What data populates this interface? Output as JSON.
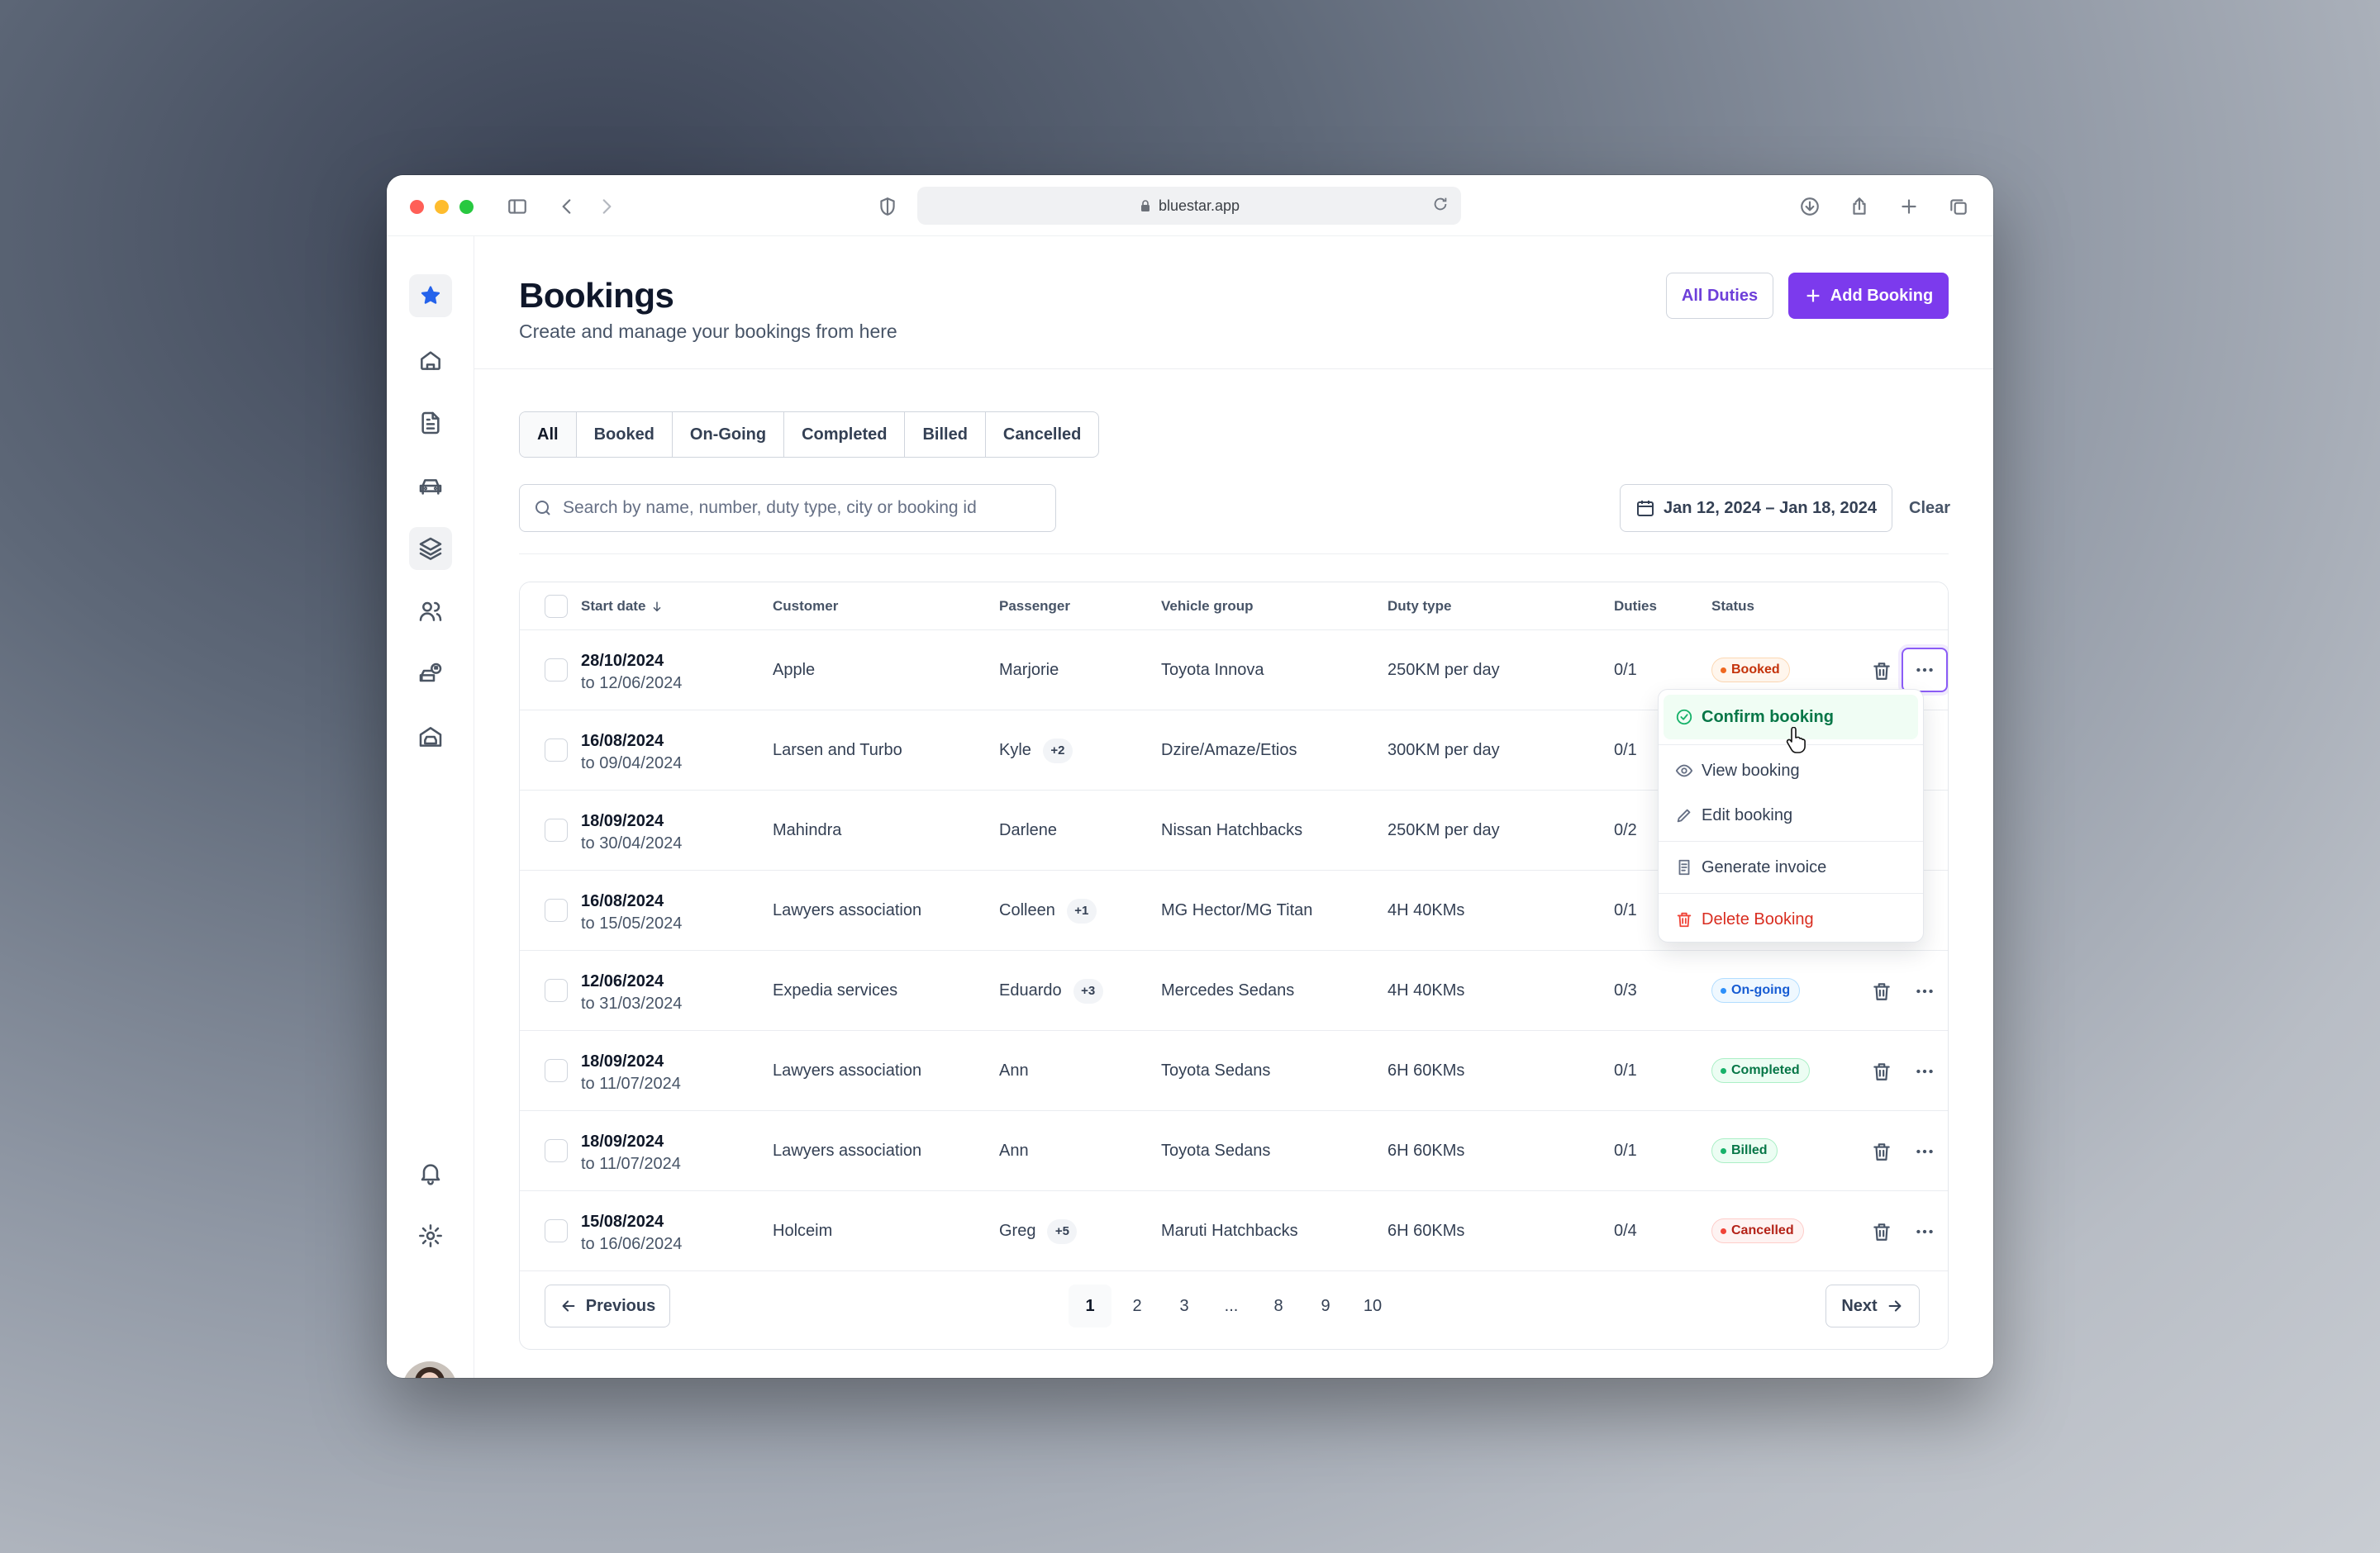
{
  "browser": {
    "url": "bluestar.app"
  },
  "page": {
    "title": "Bookings",
    "subtitle": "Create and manage your bookings from here"
  },
  "actions": {
    "all_duties": "All Duties",
    "add_booking": "Add Booking"
  },
  "tabs": [
    {
      "label": "All",
      "active": true
    },
    {
      "label": "Booked"
    },
    {
      "label": "On-Going"
    },
    {
      "label": "Completed"
    },
    {
      "label": "Billed"
    },
    {
      "label": "Cancelled"
    }
  ],
  "search": {
    "placeholder": "Search by name, number, duty type, city or booking id",
    "value": ""
  },
  "date_range": {
    "label": "Jan 12, 2024 – Jan 18, 2024",
    "clear": "Clear"
  },
  "table": {
    "columns": {
      "start_date": "Start date",
      "customer": "Customer",
      "passenger": "Passenger",
      "vehicle_group": "Vehicle group",
      "duty_type": "Duty type",
      "duties": "Duties",
      "status": "Status"
    },
    "rows": [
      {
        "start": "28/10/2024",
        "end": "to 12/06/2024",
        "customer": "Apple",
        "passenger": "Marjorie",
        "extra": "",
        "vehicle": "Toyota Innova",
        "duty_type": "250KM per day",
        "duties": "0/1",
        "status": "Booked",
        "status_key": "booked"
      },
      {
        "start": "16/08/2024",
        "end": "to 09/04/2024",
        "customer": "Larsen and Turbo",
        "passenger": "Kyle",
        "extra": "+2",
        "vehicle": "Dzire/Amaze/Etios",
        "duty_type": "300KM per day",
        "duties": "0/1",
        "status": "",
        "status_key": ""
      },
      {
        "start": "18/09/2024",
        "end": "to 30/04/2024",
        "customer": "Mahindra",
        "passenger": "Darlene",
        "extra": "",
        "vehicle": "Nissan Hatchbacks",
        "duty_type": "250KM per day",
        "duties": "0/2",
        "status": "",
        "status_key": ""
      },
      {
        "start": "16/08/2024",
        "end": "to 15/05/2024",
        "customer": "Lawyers association",
        "passenger": "Colleen",
        "extra": "+1",
        "vehicle": "MG Hector/MG Titan",
        "duty_type": "4H 40KMs",
        "duties": "0/1",
        "status": "",
        "status_key": ""
      },
      {
        "start": "12/06/2024",
        "end": "to 31/03/2024",
        "customer": "Expedia services",
        "passenger": "Eduardo",
        "extra": "+3",
        "vehicle": "Mercedes Sedans",
        "duty_type": "4H 40KMs",
        "duties": "0/3",
        "status": "On-going",
        "status_key": "ongoing"
      },
      {
        "start": "18/09/2024",
        "end": "to 11/07/2024",
        "customer": "Lawyers association",
        "passenger": "Ann",
        "extra": "",
        "vehicle": "Toyota Sedans",
        "duty_type": "6H 60KMs",
        "duties": "0/1",
        "status": "Completed",
        "status_key": "completed"
      },
      {
        "start": "18/09/2024",
        "end": "to 11/07/2024",
        "customer": "Lawyers association",
        "passenger": "Ann",
        "extra": "",
        "vehicle": "Toyota Sedans",
        "duty_type": "6H 60KMs",
        "duties": "0/1",
        "status": "Billed",
        "status_key": "billed"
      },
      {
        "start": "15/08/2024",
        "end": "to 16/06/2024",
        "customer": "Holceim",
        "passenger": "Greg",
        "extra": "+5",
        "vehicle": "Maruti Hatchbacks",
        "duty_type": "6H 60KMs",
        "duties": "0/4",
        "status": "Cancelled",
        "status_key": "cancelled"
      }
    ]
  },
  "row_menu": {
    "items": [
      {
        "label": "Confirm booking",
        "icon": "check-circle-icon"
      },
      {
        "label": "View booking",
        "icon": "eye-icon"
      },
      {
        "label": "Edit booking",
        "icon": "pencil-icon"
      },
      {
        "label": "Generate invoice",
        "icon": "invoice-icon"
      },
      {
        "label": "Delete Booking",
        "icon": "trash-icon"
      }
    ]
  },
  "pagination": {
    "previous": "Previous",
    "next": "Next",
    "pages": [
      "1",
      "2",
      "3",
      "...",
      "8",
      "9",
      "10"
    ],
    "current": "1"
  },
  "colors": {
    "accent": "#7c3aed",
    "booked": "#ef6820",
    "ongoing": "#2e90fa",
    "completed": "#17b26a",
    "cancelled": "#f04438"
  }
}
